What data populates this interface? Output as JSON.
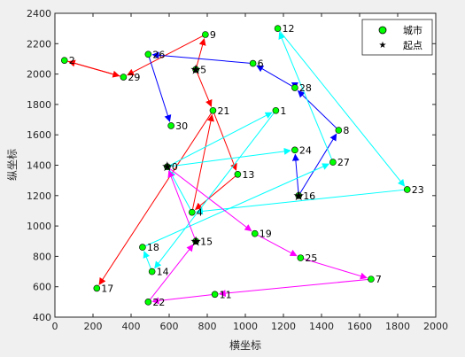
{
  "chart_data": {
    "type": "scatter",
    "title": "",
    "xlabel": "横坐标",
    "ylabel": "纵坐标",
    "xlim": [
      0,
      2000
    ],
    "ylim": [
      400,
      2400
    ],
    "xticks": [
      0,
      200,
      400,
      600,
      800,
      1000,
      1200,
      1400,
      1600,
      1800,
      2000
    ],
    "yticks": [
      400,
      600,
      800,
      1000,
      1200,
      1400,
      1600,
      1800,
      2000,
      2200,
      2400
    ],
    "grid": false,
    "legend_position": "top-right",
    "legend": [
      {
        "label": "城市",
        "marker": "circle",
        "color": "#00ff00"
      },
      {
        "label": "起点",
        "marker": "star",
        "color": "#000000"
      }
    ],
    "cities": [
      {
        "id": "1",
        "x": 1160,
        "y": 1760
      },
      {
        "id": "2",
        "x": 50,
        "y": 2090
      },
      {
        "id": "4",
        "x": 720,
        "y": 1090
      },
      {
        "id": "5",
        "x": 740,
        "y": 2030
      },
      {
        "id": "6",
        "x": 1040,
        "y": 2070
      },
      {
        "id": "7",
        "x": 1660,
        "y": 650
      },
      {
        "id": "8",
        "x": 1490,
        "y": 1630
      },
      {
        "id": "9",
        "x": 790,
        "y": 2260
      },
      {
        "id": "10",
        "x": 590,
        "y": 1390
      },
      {
        "id": "11",
        "x": 840,
        "y": 550
      },
      {
        "id": "12",
        "x": 1170,
        "y": 2300
      },
      {
        "id": "13",
        "x": 960,
        "y": 1340
      },
      {
        "id": "14",
        "x": 510,
        "y": 700
      },
      {
        "id": "15",
        "x": 740,
        "y": 900
      },
      {
        "id": "16",
        "x": 1280,
        "y": 1200
      },
      {
        "id": "17",
        "x": 220,
        "y": 590
      },
      {
        "id": "18",
        "x": 460,
        "y": 860
      },
      {
        "id": "19",
        "x": 1050,
        "y": 950
      },
      {
        "id": "21",
        "x": 830,
        "y": 1760
      },
      {
        "id": "22",
        "x": 490,
        "y": 500
      },
      {
        "id": "23",
        "x": 1850,
        "y": 1240
      },
      {
        "id": "24",
        "x": 1260,
        "y": 1500
      },
      {
        "id": "25",
        "x": 1290,
        "y": 790
      },
      {
        "id": "26",
        "x": 490,
        "y": 2130
      },
      {
        "id": "27",
        "x": 1460,
        "y": 1420
      },
      {
        "id": "28",
        "x": 1260,
        "y": 1910
      },
      {
        "id": "29",
        "x": 360,
        "y": 1980
      },
      {
        "id": "30",
        "x": 610,
        "y": 1660
      }
    ],
    "cities_visible_label": {
      "10": "0"
    },
    "start_points": [
      {
        "x": 590,
        "y": 1390
      },
      {
        "x": 740,
        "y": 2030
      },
      {
        "x": 1280,
        "y": 1200
      },
      {
        "x": 740,
        "y": 900
      }
    ],
    "routes": [
      {
        "color": "#ff0000",
        "path": [
          [
            740,
            2030
          ],
          [
            790,
            2260
          ],
          [
            360,
            1980
          ],
          [
            50,
            2090
          ],
          [
            360,
            1980
          ]
        ]
      },
      {
        "color": "#ff0000",
        "path": [
          [
            740,
            2030
          ],
          [
            830,
            1760
          ],
          [
            960,
            1340
          ]
        ]
      },
      {
        "color": "#ff0000",
        "path": [
          [
            960,
            1340
          ],
          [
            720,
            1090
          ],
          [
            830,
            1760
          ],
          [
            220,
            590
          ]
        ]
      },
      {
        "color": "#0000ff",
        "path": [
          [
            1280,
            1200
          ],
          [
            1260,
            1500
          ]
        ]
      },
      {
        "color": "#0000ff",
        "path": [
          [
            1280,
            1200
          ],
          [
            1490,
            1630
          ],
          [
            1260,
            1910
          ],
          [
            1040,
            2070
          ],
          [
            490,
            2130
          ],
          [
            610,
            1660
          ]
        ]
      },
      {
        "color": "#0000ff",
        "path": [
          [
            1260,
            1910
          ],
          [
            1260,
            1900
          ]
        ]
      },
      {
        "color": "#00ffff",
        "path": [
          [
            590,
            1390
          ],
          [
            1160,
            1760
          ],
          [
            510,
            700
          ],
          [
            460,
            860
          ],
          [
            1460,
            1420
          ],
          [
            1170,
            2300
          ],
          [
            1850,
            1240
          ],
          [
            720,
            1090
          ],
          [
            590,
            1390
          ],
          [
            1260,
            1500
          ]
        ]
      },
      {
        "color": "#ff00ff",
        "path": [
          [
            740,
            900
          ],
          [
            590,
            1390
          ],
          [
            1050,
            950
          ],
          [
            1290,
            790
          ],
          [
            1660,
            650
          ],
          [
            840,
            550
          ],
          [
            490,
            500
          ],
          [
            740,
            900
          ]
        ]
      }
    ]
  }
}
